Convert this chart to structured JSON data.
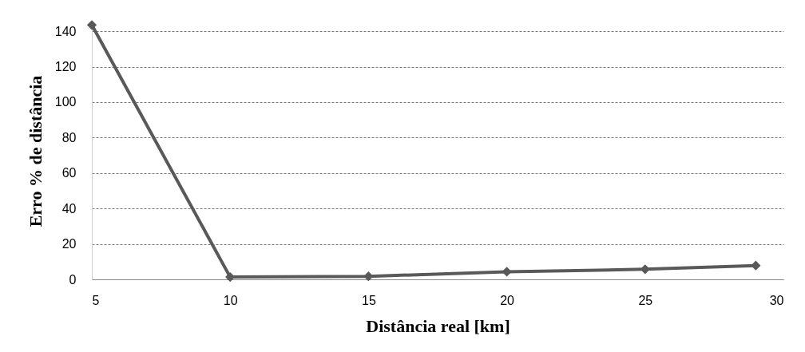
{
  "chart_data": {
    "type": "line",
    "xlabel": "Distância real [km]",
    "ylabel": "Erro % de distância",
    "x": [
      5,
      10,
      15,
      20,
      25,
      29
    ],
    "series": [
      {
        "color": "#595959",
        "values": [
          143.5,
          1.3,
          1.7,
          4.3,
          5.7,
          7.8
        ]
      }
    ],
    "xlim": [
      5,
      30
    ],
    "xticks": [
      5,
      10,
      15,
      20,
      25,
      30
    ],
    "ylim": [
      0,
      145
    ],
    "yticks": [
      0,
      20,
      40,
      60,
      80,
      100,
      120,
      140
    ],
    "grid": "y",
    "marker": "diamond",
    "line_style": "solid"
  }
}
